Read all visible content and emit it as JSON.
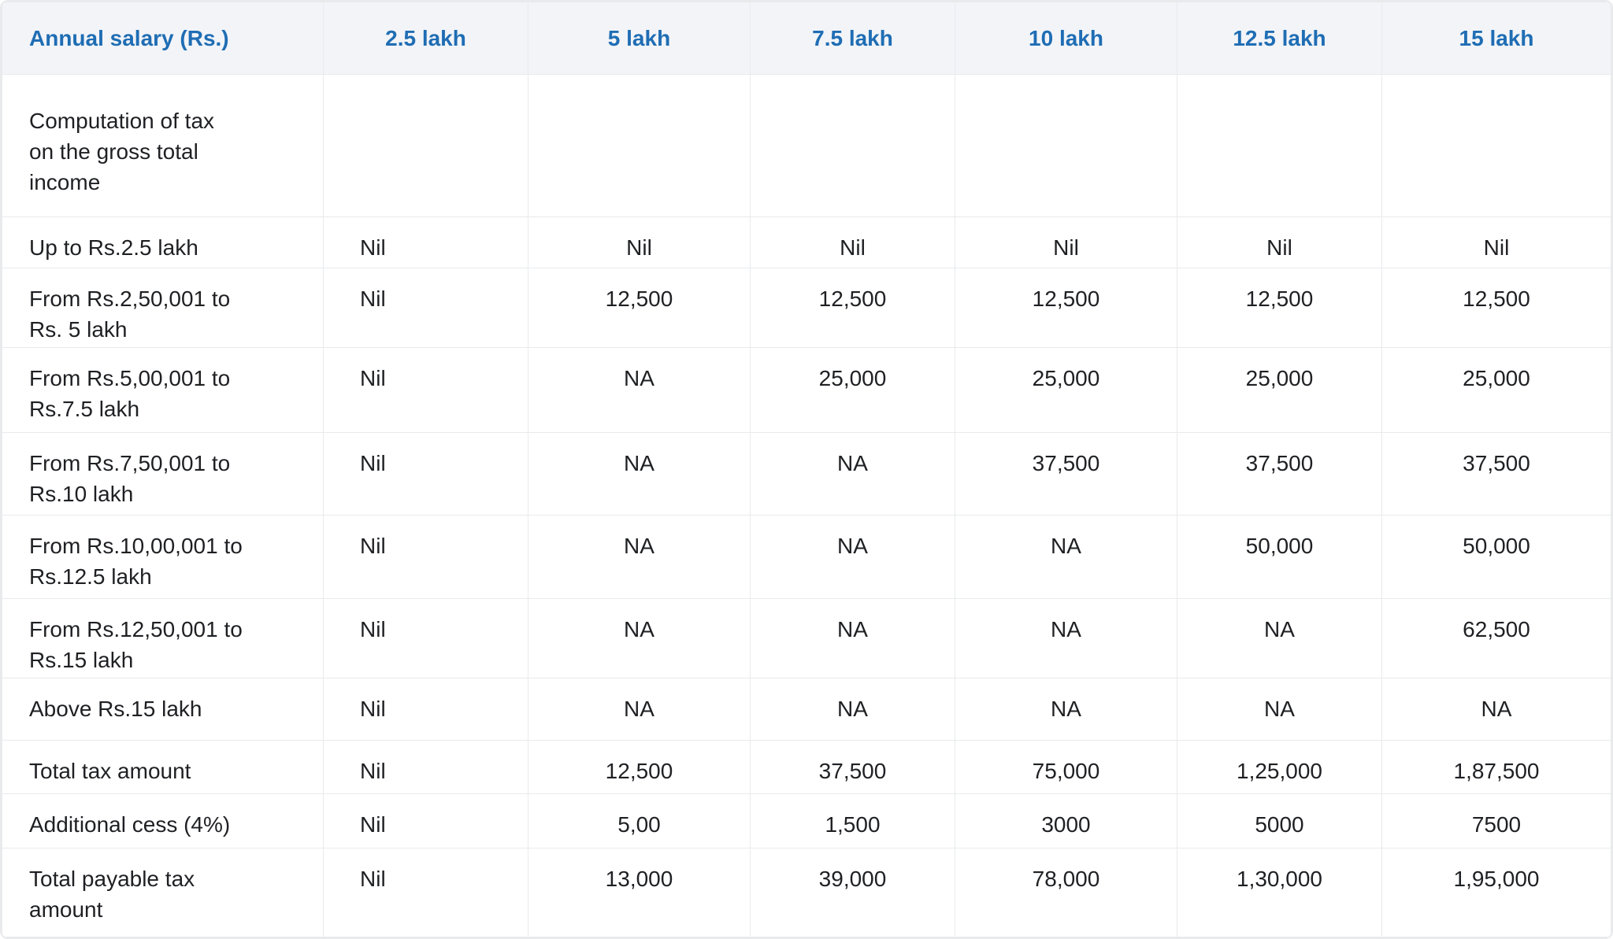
{
  "table": {
    "columns": [
      "Annual salary (Rs.)",
      "2.5 lakh",
      "5 lakh",
      "7.5 lakh",
      "10 lakh",
      "12.5 lakh",
      "15 lakh"
    ],
    "rows": [
      {
        "label": "Computation of tax\non the gross total\nincome",
        "values": [
          "",
          "",
          "",
          "",
          "",
          ""
        ]
      },
      {
        "label": "Up to Rs.2.5 lakh",
        "values": [
          "Nil",
          "Nil",
          "Nil",
          "Nil",
          "Nil",
          "Nil"
        ]
      },
      {
        "label": "From Rs.2,50,001 to\nRs. 5 lakh",
        "values": [
          "Nil",
          "12,500",
          "12,500",
          "12,500",
          "12,500",
          "12,500"
        ]
      },
      {
        "label": "From Rs.5,00,001 to\nRs.7.5 lakh",
        "values": [
          "Nil",
          "NA",
          "25,000",
          "25,000",
          "25,000",
          "25,000"
        ]
      },
      {
        "label": "From Rs.7,50,001 to\nRs.10 lakh",
        "values": [
          "Nil",
          "NA",
          "NA",
          "37,500",
          "37,500",
          "37,500"
        ]
      },
      {
        "label": "From Rs.10,00,001 to\nRs.12.5 lakh",
        "values": [
          "Nil",
          "NA",
          "NA",
          "NA",
          "50,000",
          "50,000"
        ]
      },
      {
        "label": "From Rs.12,50,001 to\nRs.15 lakh",
        "values": [
          "Nil",
          "NA",
          "NA",
          "NA",
          "NA",
          "62,500"
        ]
      },
      {
        "label": "Above Rs.15 lakh",
        "values": [
          "Nil",
          "NA",
          "NA",
          "NA",
          "NA",
          "NA"
        ]
      },
      {
        "label": "Total tax amount",
        "values": [
          "Nil",
          "12,500",
          "37,500",
          "75,000",
          "1,25,000",
          "1,87,500"
        ]
      },
      {
        "label": "Additional cess (4%)",
        "values": [
          "Nil",
          "5,00",
          "1,500",
          "3000",
          "5000",
          "7500"
        ]
      },
      {
        "label": "Total payable tax\namount",
        "values": [
          "Nil",
          "13,000",
          "39,000",
          "78,000",
          "1,30,000",
          "1,95,000"
        ]
      }
    ]
  },
  "colors": {
    "accent_blue": "#1f6db4",
    "header_bg": "#f2f4f8",
    "body_text": "#1f2023",
    "border": "#e9eaec"
  }
}
